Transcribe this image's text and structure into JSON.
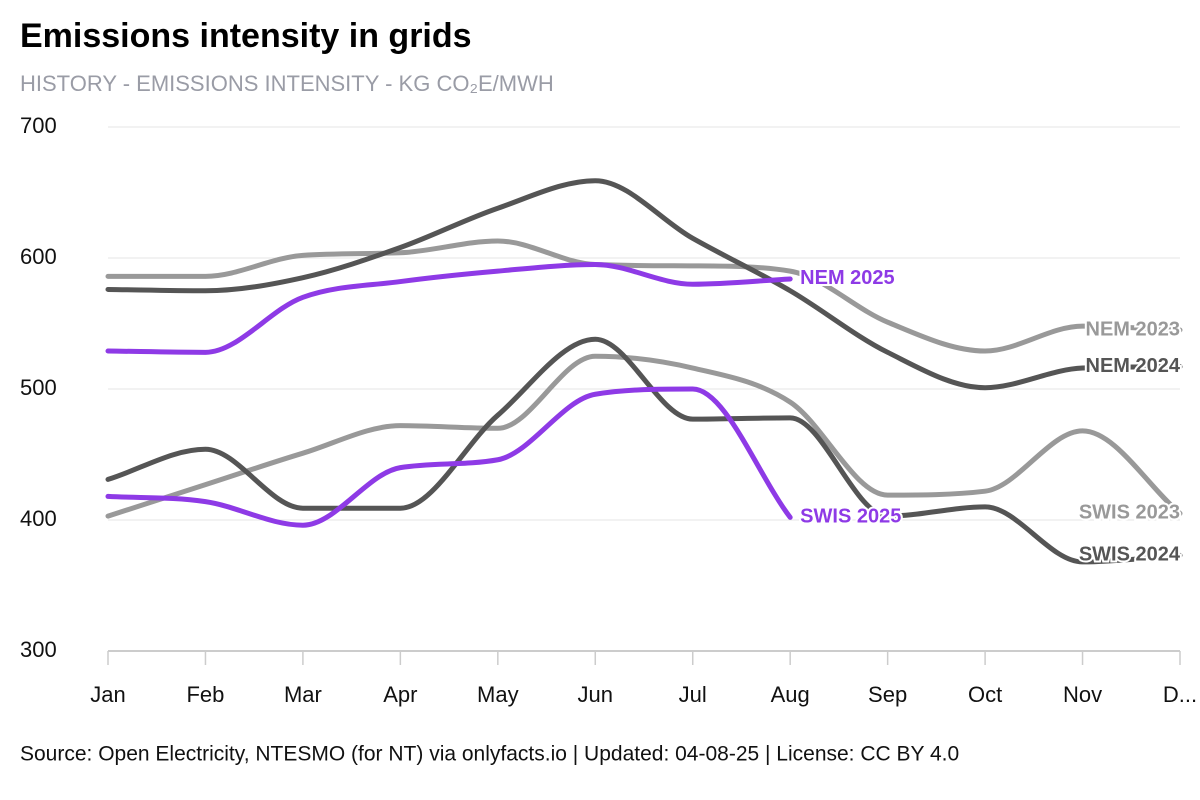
{
  "chart_data": {
    "type": "line",
    "title": "Emissions intensity in grids",
    "subtitle": "HISTORY - EMISSIONS INTENSITY - KG CO₂E/MWH",
    "source": "Source: Open Electricity, NTESMO (for NT) via onlyfacts.io | Updated: 04-08-25 | License: CC BY 4.0",
    "categories": [
      "Jan",
      "Feb",
      "Mar",
      "Apr",
      "May",
      "Jun",
      "Jul",
      "Aug",
      "Sep",
      "Oct",
      "Nov",
      "D..."
    ],
    "series": [
      {
        "name": "NEM 2023",
        "color": "#999999",
        "values": [
          586,
          586,
          602,
          604,
          613,
          595,
          594,
          590,
          551,
          529,
          548,
          545
        ]
      },
      {
        "name": "NEM 2024",
        "color": "#555555",
        "values": [
          576,
          575,
          585,
          608,
          638,
          659,
          615,
          575,
          528,
          501,
          516,
          517
        ]
      },
      {
        "name": "NEM 2025",
        "color": "#8e3ae6",
        "values": [
          529,
          528,
          570,
          582,
          590,
          595,
          580,
          584,
          null,
          null,
          null,
          null
        ]
      },
      {
        "name": "SWIS 2023",
        "color": "#999999",
        "values": [
          403,
          427,
          451,
          472,
          470,
          525,
          516,
          490,
          419,
          422,
          468,
          405
        ]
      },
      {
        "name": "SWIS 2024",
        "color": "#555555",
        "values": [
          431,
          454,
          409,
          409,
          480,
          538,
          477,
          478,
          403,
          410,
          368,
          373
        ]
      },
      {
        "name": "SWIS 2025",
        "color": "#8e3ae6",
        "values": [
          418,
          414,
          396,
          440,
          446,
          496,
          500,
          402,
          null,
          null,
          null,
          null
        ]
      }
    ],
    "ylim": [
      300,
      700
    ],
    "yticks": [
      300,
      400,
      500,
      600,
      700
    ],
    "grid": true
  }
}
